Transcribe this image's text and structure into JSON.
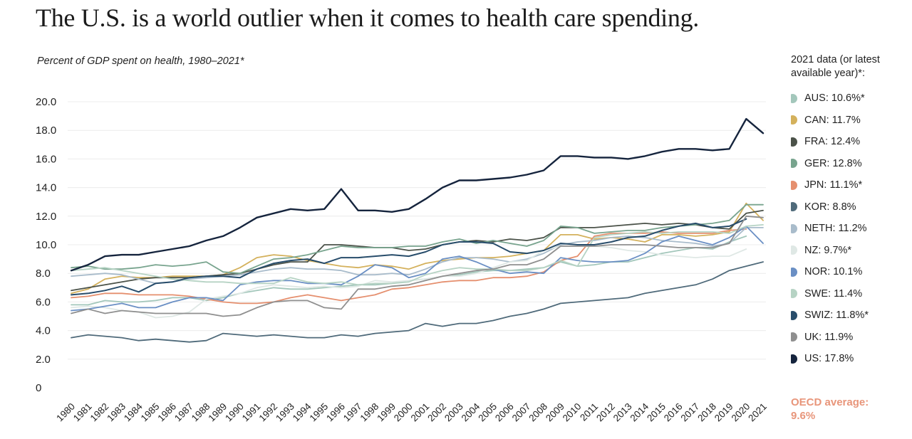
{
  "title": "The U.S. is a world outlier when it comes to health care spending.",
  "subtitle": "Percent of GDP spent on health, 1980–2021*",
  "legend": {
    "heading": "2021 data (or latest available year)*:",
    "items": [
      {
        "label": "AUS: 10.6%*",
        "color": "#a3c7bb"
      },
      {
        "label": "CAN: 11.7%",
        "color": "#d4b15c"
      },
      {
        "label": "FRA: 12.4%",
        "color": "#4b5249"
      },
      {
        "label": "GER: 12.8%",
        "color": "#78a48e"
      },
      {
        "label": "JPN: 11.1%*",
        "color": "#e58f6e"
      },
      {
        "label": "KOR: 8.8%",
        "color": "#4f6a7a"
      },
      {
        "label": "NETH: 11.2%",
        "color": "#a9bccb"
      },
      {
        "label": "NZ: 9.7%*",
        "color": "#dfe8e5"
      },
      {
        "label": "NOR: 10.1%",
        "color": "#6a8fc4"
      },
      {
        "label": "SWE: 11.4%",
        "color": "#b6d3c4"
      },
      {
        "label": "SWIZ: 11.8%*",
        "color": "#284d6b"
      },
      {
        "label": "UK: 11.9%",
        "color": "#8f8f8f"
      },
      {
        "label": "US: 17.8%",
        "color": "#15243d"
      }
    ]
  },
  "oecd_note": "OECD average:\n9.6%",
  "chart_data": {
    "type": "line",
    "title": "The U.S. is a world outlier when it comes to health care spending.",
    "subtitle": "Percent of GDP spent on health, 1980–2021*",
    "xlabel": "",
    "ylabel": "",
    "ylim": [
      0,
      20
    ],
    "yticks": [
      "0",
      "2.0",
      "4.0",
      "6.0",
      "8.0",
      "10.0",
      "12.0",
      "14.0",
      "16.0",
      "18.0",
      "20.0"
    ],
    "grid": "horizontal",
    "legend_position": "right",
    "x": [
      "1980",
      "1981",
      "1982",
      "1983",
      "1984",
      "1985",
      "1986",
      "1987",
      "1988",
      "1989",
      "1990",
      "1991",
      "1992",
      "1993",
      "1994",
      "1995",
      "1996",
      "1997",
      "1998",
      "1999",
      "2000",
      "2001",
      "2002",
      "2003",
      "2004",
      "2005",
      "2006",
      "2007",
      "2008",
      "2009",
      "2010",
      "2011",
      "2012",
      "2013",
      "2014",
      "2015",
      "2016",
      "2017",
      "2018",
      "2019",
      "2020",
      "2021"
    ],
    "series": [
      {
        "name": "AUS",
        "color": "#a3c7bb",
        "width": 1.8,
        "values": [
          5.8,
          5.8,
          6.1,
          6.0,
          6.0,
          6.1,
          6.3,
          6.3,
          6.1,
          6.3,
          6.6,
          6.8,
          7.0,
          6.9,
          6.9,
          7.0,
          7.1,
          7.2,
          7.2,
          7.3,
          7.5,
          7.6,
          7.8,
          7.9,
          8.1,
          8.2,
          8.2,
          8.3,
          8.4,
          8.8,
          8.5,
          8.6,
          8.8,
          8.8,
          9.1,
          9.4,
          9.6,
          9.8,
          9.7,
          10.2,
          10.6,
          null
        ]
      },
      {
        "name": "CAN",
        "color": "#d4b15c",
        "width": 1.8,
        "values": [
          6.6,
          6.9,
          7.6,
          7.8,
          7.7,
          7.7,
          7.8,
          7.8,
          7.8,
          7.9,
          8.4,
          9.1,
          9.3,
          9.2,
          8.9,
          8.7,
          8.5,
          8.4,
          8.6,
          8.5,
          8.3,
          8.7,
          8.9,
          9.0,
          9.1,
          9.1,
          9.2,
          9.4,
          9.6,
          10.7,
          10.7,
          10.4,
          10.5,
          10.4,
          10.2,
          10.7,
          10.7,
          10.6,
          10.7,
          10.9,
          12.9,
          11.7
        ]
      },
      {
        "name": "FRA",
        "color": "#4b5249",
        "width": 1.8,
        "values": [
          6.8,
          7.0,
          7.2,
          7.4,
          7.6,
          7.7,
          7.7,
          7.7,
          7.8,
          7.9,
          8.0,
          8.3,
          8.6,
          8.8,
          8.8,
          10.0,
          10.0,
          9.9,
          9.8,
          9.8,
          9.6,
          9.7,
          10.0,
          10.2,
          10.3,
          10.2,
          10.4,
          10.3,
          10.5,
          11.2,
          11.2,
          11.2,
          11.3,
          11.4,
          11.5,
          11.4,
          11.5,
          11.4,
          11.2,
          11.1,
          12.2,
          12.4
        ]
      },
      {
        "name": "GER",
        "color": "#78a48e",
        "width": 1.8,
        "values": [
          8.4,
          8.5,
          8.3,
          8.3,
          8.4,
          8.6,
          8.5,
          8.6,
          8.8,
          8.1,
          8.0,
          8.5,
          9.0,
          9.1,
          9.3,
          9.6,
          9.9,
          9.8,
          9.8,
          9.8,
          9.9,
          9.9,
          10.2,
          10.4,
          10.1,
          10.3,
          10.1,
          9.9,
          10.3,
          11.3,
          11.2,
          10.8,
          10.9,
          11.0,
          11.0,
          11.2,
          11.3,
          11.4,
          11.5,
          11.7,
          12.8,
          12.8
        ]
      },
      {
        "name": "JPN",
        "color": "#e58f6e",
        "width": 1.8,
        "values": [
          6.3,
          6.4,
          6.6,
          6.6,
          6.5,
          6.5,
          6.5,
          6.4,
          6.2,
          6.0,
          5.9,
          5.9,
          6.0,
          6.3,
          6.5,
          6.3,
          6.1,
          6.3,
          6.5,
          6.9,
          7.0,
          7.2,
          7.4,
          7.5,
          7.5,
          7.7,
          7.7,
          7.8,
          8.1,
          8.9,
          9.2,
          10.6,
          10.8,
          10.8,
          10.8,
          10.9,
          10.8,
          10.8,
          10.8,
          11.0,
          11.1,
          null
        ]
      },
      {
        "name": "KOR",
        "color": "#4f6a7a",
        "width": 1.8,
        "values": [
          3.5,
          3.7,
          3.6,
          3.5,
          3.3,
          3.4,
          3.3,
          3.2,
          3.3,
          3.8,
          3.7,
          3.6,
          3.7,
          3.6,
          3.5,
          3.5,
          3.7,
          3.6,
          3.8,
          3.9,
          4.0,
          4.5,
          4.3,
          4.5,
          4.5,
          4.7,
          5.0,
          5.2,
          5.5,
          5.9,
          6.0,
          6.1,
          6.2,
          6.3,
          6.6,
          6.8,
          7.0,
          7.2,
          7.6,
          8.2,
          8.5,
          8.8
        ]
      },
      {
        "name": "NETH",
        "color": "#a9bccb",
        "width": 1.8,
        "values": [
          7.8,
          7.9,
          8.0,
          7.9,
          7.6,
          7.3,
          7.4,
          7.6,
          7.7,
          7.8,
          7.9,
          8.1,
          8.3,
          8.4,
          8.3,
          8.3,
          8.2,
          7.9,
          7.9,
          8.0,
          7.9,
          8.3,
          8.8,
          9.1,
          9.1,
          9.0,
          8.8,
          9.0,
          9.4,
          10.0,
          10.2,
          10.3,
          10.5,
          10.6,
          10.5,
          10.3,
          10.2,
          10.1,
          9.9,
          10.1,
          11.2,
          11.2
        ]
      },
      {
        "name": "NZ",
        "color": "#dfe8e5",
        "width": 1.8,
        "values": [
          5.6,
          5.7,
          5.6,
          5.4,
          5.3,
          4.9,
          5.0,
          5.3,
          6.2,
          6.4,
          6.6,
          7.0,
          7.2,
          7.1,
          7.0,
          7.1,
          7.0,
          7.1,
          7.5,
          7.4,
          7.5,
          7.6,
          7.8,
          7.8,
          8.0,
          8.4,
          8.8,
          8.9,
          9.6,
          9.9,
          9.9,
          9.9,
          9.8,
          9.6,
          9.5,
          9.3,
          9.2,
          9.1,
          9.2,
          9.2,
          9.7,
          null
        ]
      },
      {
        "name": "NOR",
        "color": "#6a8fc4",
        "width": 1.8,
        "values": [
          5.4,
          5.5,
          5.7,
          5.9,
          5.6,
          5.6,
          6.0,
          6.3,
          6.3,
          6.1,
          7.2,
          7.4,
          7.5,
          7.5,
          7.3,
          7.3,
          7.2,
          7.8,
          8.6,
          8.4,
          7.7,
          8.0,
          9.0,
          9.2,
          8.8,
          8.3,
          8.0,
          8.1,
          8.0,
          9.1,
          8.9,
          8.8,
          8.8,
          8.9,
          9.4,
          10.2,
          10.6,
          10.3,
          10.0,
          10.5,
          11.3,
          10.1
        ]
      },
      {
        "name": "SWE",
        "color": "#b6d3c4",
        "width": 1.8,
        "values": [
          8.2,
          8.3,
          8.4,
          8.2,
          8.0,
          7.8,
          7.6,
          7.5,
          7.4,
          7.4,
          7.3,
          7.3,
          7.3,
          7.7,
          7.4,
          7.3,
          7.4,
          7.2,
          7.3,
          7.3,
          7.4,
          7.9,
          8.2,
          8.4,
          8.3,
          8.3,
          8.2,
          8.2,
          8.4,
          8.9,
          8.5,
          10.5,
          10.7,
          10.8,
          10.9,
          10.8,
          10.9,
          10.9,
          10.9,
          10.8,
          11.3,
          11.4
        ]
      },
      {
        "name": "SWIZ",
        "color": "#284d6b",
        "width": 2.0,
        "values": [
          6.5,
          6.6,
          6.8,
          7.1,
          6.7,
          7.3,
          7.4,
          7.7,
          7.8,
          7.8,
          7.7,
          8.3,
          8.7,
          8.9,
          9.0,
          8.7,
          9.1,
          9.1,
          9.2,
          9.3,
          9.2,
          9.5,
          10.0,
          10.2,
          10.2,
          10.1,
          9.5,
          9.4,
          9.6,
          10.1,
          10.0,
          10.0,
          10.2,
          10.5,
          10.6,
          11.0,
          11.3,
          11.5,
          11.2,
          11.3,
          11.8,
          null
        ]
      },
      {
        "name": "UK",
        "color": "#8f8f8f",
        "width": 1.8,
        "values": [
          5.2,
          5.5,
          5.2,
          5.4,
          5.3,
          5.2,
          5.2,
          5.2,
          5.2,
          5.0,
          5.1,
          5.6,
          6.0,
          6.1,
          6.1,
          5.6,
          5.5,
          6.9,
          6.9,
          7.1,
          7.2,
          7.5,
          7.8,
          8.0,
          8.2,
          8.3,
          8.6,
          8.6,
          9.0,
          9.9,
          9.9,
          9.9,
          10.0,
          10.0,
          10.0,
          9.9,
          9.8,
          9.8,
          9.8,
          10.1,
          12.0,
          11.9
        ]
      },
      {
        "name": "US",
        "color": "#15243d",
        "width": 2.4,
        "values": [
          8.2,
          8.6,
          9.2,
          9.3,
          9.3,
          9.5,
          9.7,
          9.9,
          10.3,
          10.6,
          11.2,
          11.9,
          12.2,
          12.5,
          12.4,
          12.5,
          13.9,
          12.4,
          12.4,
          12.3,
          12.5,
          13.2,
          14.0,
          14.5,
          14.5,
          14.6,
          14.7,
          14.9,
          15.2,
          16.2,
          16.2,
          16.1,
          16.1,
          16.0,
          16.2,
          16.5,
          16.7,
          16.7,
          16.6,
          16.7,
          18.8,
          17.8
        ]
      }
    ]
  }
}
